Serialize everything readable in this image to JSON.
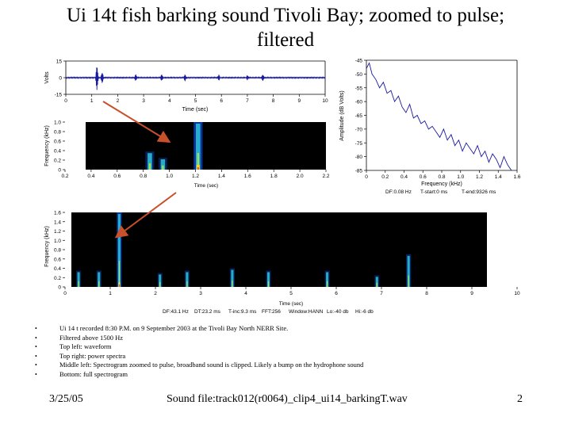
{
  "slide": {
    "title": "Ui 14t fish barking sound Tivoli Bay; zoomed to pulse; filtered",
    "bullets": [
      "Ui 14 t recorded 8:30 P.M. on 9 September 2003 at the Tivoli Bay North NERR Site.",
      "Filtered above 1500 Hz",
      "Top left: waveform",
      "Top right: power spectra",
      "Middle left: Spectrogram zoomed to pulse, broadband sound is clipped. Likely a bump on the hydrophone sound",
      "Bottom: full spectrogram"
    ],
    "footer": {
      "date": "3/25/05",
      "sound_file": "Sound file:track012(r0064)_clip4_ui14_barkingT.wav",
      "page_number": "2"
    }
  },
  "colors": {
    "waveform_line": "#1a1aa0",
    "spectrogram_bg": "#000000",
    "arrow": "#c8502a"
  },
  "chart_data": [
    {
      "type": "line",
      "title": "",
      "xlabel": "Time (sec)",
      "ylabel": "Volts",
      "xlim": [
        0,
        10
      ],
      "ylim": [
        -15,
        15
      ],
      "x_ticks": [
        "0",
        "1",
        "2",
        "3",
        "4",
        "5",
        "6",
        "7",
        "8",
        "9",
        "10"
      ],
      "y_ticks": [
        "15",
        "0",
        "-15"
      ],
      "pulses": [
        {
          "t": 1.2,
          "amp": 11
        },
        {
          "t": 1.4,
          "amp": 5
        },
        {
          "t": 2.7,
          "amp": 3
        },
        {
          "t": 3.7,
          "amp": 3
        },
        {
          "t": 4.6,
          "amp": 3
        },
        {
          "t": 5.9,
          "amp": 2.5
        },
        {
          "t": 7.0,
          "amp": 2
        },
        {
          "t": 7.6,
          "amp": 3
        }
      ]
    },
    {
      "type": "line",
      "title": "",
      "xlabel": "Frequency (kHz)",
      "ylabel": "Amplitude (dB Volts)",
      "xlim": [
        0,
        1.6
      ],
      "ylim": [
        -85,
        -45
      ],
      "x_ticks": [
        "0",
        "0.2",
        "0.4",
        "0.6",
        "0.8",
        "1.0",
        "1.2",
        "1.4",
        "1.6"
      ],
      "y_ticks": [
        "-45",
        "-50",
        "-55",
        "-60",
        "-65",
        "-70",
        "-75",
        "-80",
        "-85"
      ],
      "caption": {
        "df": "DF:0.08 Hz",
        "t_start": "T-start:0 ms",
        "t_end": "T-end:9326 ms"
      },
      "x": [
        0.0,
        0.03,
        0.06,
        0.1,
        0.14,
        0.18,
        0.22,
        0.26,
        0.3,
        0.34,
        0.38,
        0.42,
        0.46,
        0.5,
        0.54,
        0.58,
        0.62,
        0.66,
        0.7,
        0.74,
        0.78,
        0.82,
        0.86,
        0.9,
        0.94,
        0.98,
        1.02,
        1.06,
        1.1,
        1.14,
        1.18,
        1.22,
        1.26,
        1.3,
        1.34,
        1.38,
        1.42,
        1.46,
        1.5,
        1.54
      ],
      "y": [
        -48,
        -46,
        -50,
        -52,
        -55,
        -53,
        -57,
        -56,
        -60,
        -58,
        -62,
        -64,
        -61,
        -66,
        -65,
        -68,
        -67,
        -70,
        -69,
        -71,
        -73,
        -70,
        -74,
        -72,
        -76,
        -74,
        -78,
        -75,
        -77,
        -79,
        -76,
        -80,
        -78,
        -82,
        -79,
        -81,
        -84,
        -80,
        -83,
        -85
      ]
    },
    {
      "type": "heatmap",
      "title": "",
      "xlabel": "Time (sec)",
      "ylabel": "Frequency (kHz)",
      "xlim": [
        0.2,
        2.2
      ],
      "ylim": [
        0,
        1.0
      ],
      "x_ticks": [
        "0.2",
        "0.4",
        "0.6",
        "0.8",
        "1.0",
        "1.2",
        "1.4",
        "1.6",
        "1.8",
        "2.0",
        "2.2"
      ],
      "y_ticks": [
        "1.0",
        "0.8",
        "0.6",
        "0.4",
        "0.2",
        "0"
      ],
      "events": [
        {
          "t": 0.85,
          "f_top": 0.38,
          "strength": 0.5
        },
        {
          "t": 0.95,
          "f_top": 0.25,
          "strength": 0.4
        },
        {
          "t": 1.22,
          "f_top": 1.0,
          "strength": 1.0
        }
      ]
    },
    {
      "type": "heatmap",
      "title": "",
      "xlabel": "Time (sec)",
      "ylabel": "Frequency (kHz)",
      "xlim": [
        0,
        10
      ],
      "ylim": [
        0,
        1.6
      ],
      "x_ticks": [
        "0",
        "1",
        "2",
        "3",
        "4",
        "5",
        "6",
        "7",
        "8",
        "9",
        "10"
      ],
      "y_ticks": [
        "1.6",
        "1.4",
        "1.2",
        "1.0",
        "0.8",
        "0.6",
        "0.4",
        "0.2",
        "0"
      ],
      "caption": {
        "df": "DF:43.1 Hz",
        "dt": "DT:23.2 ms",
        "t_inc": "T-inc:9.3 ms",
        "fft": "FFT:256",
        "window": "Window:HANN",
        "lo": "Lo:-40 db",
        "hi": "Hi:-6 db"
      },
      "events": [
        {
          "t": 0.3,
          "f_top": 0.35,
          "strength": 0.4
        },
        {
          "t": 0.75,
          "f_top": 0.35,
          "strength": 0.5
        },
        {
          "t": 1.2,
          "f_top": 1.6,
          "strength": 1.0
        },
        {
          "t": 2.1,
          "f_top": 0.3,
          "strength": 0.4
        },
        {
          "t": 2.7,
          "f_top": 0.35,
          "strength": 0.5
        },
        {
          "t": 3.7,
          "f_top": 0.4,
          "strength": 0.5
        },
        {
          "t": 4.5,
          "f_top": 0.35,
          "strength": 0.5
        },
        {
          "t": 5.8,
          "f_top": 0.35,
          "strength": 0.45
        },
        {
          "t": 6.9,
          "f_top": 0.25,
          "strength": 0.4
        },
        {
          "t": 7.6,
          "f_top": 0.7,
          "strength": 0.6
        }
      ]
    }
  ]
}
